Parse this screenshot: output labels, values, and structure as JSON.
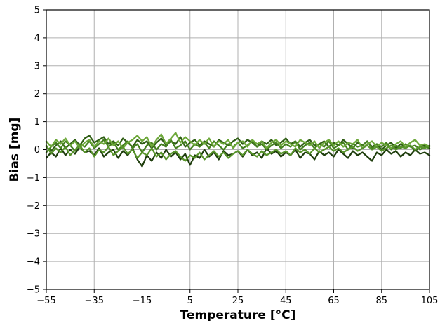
{
  "chart_data": {
    "type": "line",
    "xlabel": "Temperature [°C]",
    "ylabel": "Bias [mg]",
    "xlim": [
      -55,
      105
    ],
    "ylim": [
      -5,
      5
    ],
    "xticks": [
      -55,
      -35,
      -15,
      5,
      25,
      45,
      65,
      85,
      105
    ],
    "yticks": [
      -5,
      -4,
      -3,
      -2,
      -1,
      0,
      1,
      2,
      3,
      4,
      5
    ],
    "xtick_labels": [
      "−55",
      "−35",
      "−15",
      "5",
      "25",
      "45",
      "65",
      "85",
      "105"
    ],
    "ytick_labels": [
      "−5",
      "−4",
      "−3",
      "−2",
      "−1",
      "0",
      "1",
      "2",
      "3",
      "4",
      "5"
    ],
    "grid": true,
    "x": [
      -55,
      -53,
      -51,
      -49,
      -47,
      -45,
      -43,
      -41,
      -39,
      -37,
      -35,
      -33,
      -31,
      -29,
      -27,
      -25,
      -23,
      -21,
      -19,
      -17,
      -15,
      -13,
      -11,
      -9,
      -7,
      -5,
      -3,
      -1,
      1,
      3,
      5,
      7,
      9,
      11,
      13,
      15,
      17,
      19,
      21,
      23,
      25,
      27,
      29,
      31,
      33,
      35,
      37,
      39,
      41,
      43,
      45,
      47,
      49,
      51,
      53,
      55,
      57,
      59,
      61,
      63,
      65,
      67,
      69,
      71,
      73,
      75,
      77,
      79,
      81,
      83,
      85,
      87,
      89,
      91,
      93,
      95,
      97,
      99,
      101,
      103,
      105
    ],
    "series": [
      {
        "color": "#1e3d0c",
        "values": [
          -0.3,
          -0.1,
          -0.25,
          0.05,
          -0.2,
          0.0,
          -0.15,
          0.1,
          -0.1,
          -0.05,
          -0.2,
          0.05,
          -0.25,
          -0.1,
          0.0,
          -0.3,
          -0.05,
          -0.2,
          0.05,
          -0.35,
          -0.6,
          -0.2,
          -0.4,
          -0.1,
          -0.3,
          0.0,
          -0.25,
          -0.1,
          -0.35,
          -0.15,
          -0.55,
          -0.2,
          -0.3,
          0.0,
          -0.25,
          -0.1,
          -0.35,
          -0.05,
          -0.2,
          -0.15,
          -0.05,
          -0.25,
          0.0,
          -0.2,
          -0.1,
          -0.3,
          0.05,
          -0.15,
          -0.05,
          -0.25,
          -0.1,
          -0.2,
          0.0,
          -0.3,
          -0.1,
          -0.15,
          -0.35,
          -0.05,
          -0.2,
          -0.1,
          -0.25,
          0.0,
          -0.15,
          -0.3,
          -0.05,
          -0.2,
          -0.1,
          -0.25,
          -0.4,
          -0.1,
          -0.2,
          0.0,
          -0.15,
          -0.05,
          -0.25,
          -0.1,
          -0.2,
          0.0,
          -0.15,
          -0.1,
          -0.2
        ]
      },
      {
        "color": "#2f5e14",
        "values": [
          0.1,
          -0.05,
          0.15,
          0.3,
          0.05,
          0.2,
          0.35,
          0.15,
          0.4,
          0.5,
          0.25,
          0.35,
          0.45,
          0.2,
          0.3,
          0.15,
          0.4,
          0.25,
          0.1,
          0.35,
          0.2,
          0.3,
          0.05,
          0.25,
          0.4,
          0.15,
          0.3,
          0.2,
          0.45,
          0.1,
          0.25,
          0.35,
          0.15,
          0.3,
          0.2,
          0.1,
          0.35,
          0.25,
          0.15,
          0.3,
          0.4,
          0.2,
          0.35,
          0.25,
          0.1,
          0.3,
          0.2,
          0.35,
          0.15,
          0.25,
          0.4,
          0.2,
          0.3,
          0.1,
          0.25,
          0.35,
          0.15,
          0.2,
          0.3,
          0.1,
          0.25,
          0.15,
          0.35,
          0.2,
          0.05,
          0.25,
          0.15,
          0.3,
          0.1,
          0.2,
          0.0,
          0.15,
          0.25,
          0.05,
          0.2,
          0.1,
          0.15,
          -0.05,
          0.1,
          0.15,
          0.05
        ]
      },
      {
        "color": "#44801e",
        "values": [
          -0.1,
          0.1,
          0.25,
          0.05,
          0.3,
          0.15,
          -0.05,
          0.2,
          0.1,
          0.3,
          0.05,
          0.2,
          0.35,
          0.1,
          0.25,
          0.0,
          0.15,
          0.3,
          0.05,
          0.2,
          -0.1,
          0.15,
          0.25,
          0.0,
          0.2,
          0.1,
          0.35,
          0.05,
          0.15,
          0.3,
          0.0,
          0.2,
          0.1,
          0.25,
          0.05,
          0.3,
          0.15,
          0.0,
          0.2,
          0.1,
          0.25,
          0.05,
          0.15,
          0.3,
          0.1,
          0.2,
          0.0,
          0.15,
          0.25,
          0.05,
          0.2,
          0.1,
          0.3,
          0.0,
          0.15,
          0.25,
          0.05,
          0.2,
          0.1,
          0.3,
          0.05,
          0.15,
          0.25,
          0.0,
          0.2,
          0.1,
          0.15,
          0.3,
          0.05,
          0.2,
          0.1,
          0.25,
          0.0,
          0.15,
          0.05,
          0.2,
          0.1,
          0.15,
          0.0,
          0.1,
          0.05
        ]
      },
      {
        "color": "#6da83a",
        "values": [
          0.3,
          0.1,
          0.35,
          0.2,
          0.4,
          0.15,
          0.3,
          0.05,
          0.25,
          0.35,
          0.1,
          0.3,
          0.2,
          0.4,
          0.15,
          0.3,
          0.05,
          0.25,
          0.35,
          0.5,
          0.3,
          0.45,
          0.1,
          0.35,
          0.55,
          0.2,
          0.4,
          0.6,
          0.25,
          0.45,
          0.3,
          0.15,
          0.35,
          0.2,
          0.4,
          0.1,
          0.3,
          0.2,
          0.35,
          0.05,
          0.25,
          0.3,
          0.1,
          0.35,
          0.2,
          0.3,
          0.05,
          0.25,
          0.35,
          0.15,
          0.3,
          0.2,
          0.1,
          0.35,
          0.25,
          0.15,
          0.3,
          0.05,
          0.25,
          0.35,
          0.15,
          0.3,
          0.1,
          0.25,
          0.2,
          0.35,
          0.05,
          0.2,
          0.3,
          0.1,
          0.25,
          0.15,
          0.05,
          0.2,
          0.3,
          0.1,
          0.25,
          0.35,
          0.15,
          0.2,
          0.1
        ]
      },
      {
        "color": "#57942a",
        "values": [
          0.15,
          -0.15,
          0.05,
          -0.1,
          0.1,
          -0.2,
          0.0,
          0.15,
          -0.1,
          0.05,
          -0.25,
          0.0,
          -0.1,
          0.1,
          -0.2,
          -0.05,
          0.1,
          -0.15,
          0.0,
          -0.3,
          -0.1,
          -0.2,
          0.05,
          -0.25,
          -0.1,
          -0.35,
          -0.15,
          -0.05,
          -0.25,
          -0.4,
          -0.2,
          -0.3,
          -0.1,
          -0.35,
          -0.2,
          -0.05,
          -0.25,
          -0.1,
          -0.3,
          -0.15,
          -0.05,
          -0.2,
          0.0,
          -0.15,
          -0.25,
          -0.05,
          -0.2,
          -0.1,
          0.0,
          -0.15,
          -0.05,
          -0.2,
          0.05,
          -0.1,
          0.0,
          -0.15,
          0.05,
          -0.1,
          0.0,
          0.1,
          -0.05,
          0.05,
          -0.1,
          0.0,
          0.1,
          -0.05,
          0.05,
          0.15,
          0.0,
          0.1,
          -0.05,
          0.05,
          0.15,
          0.0,
          0.1,
          0.05,
          0.15,
          0.0,
          0.1,
          0.05,
          0.15
        ]
      }
    ]
  }
}
